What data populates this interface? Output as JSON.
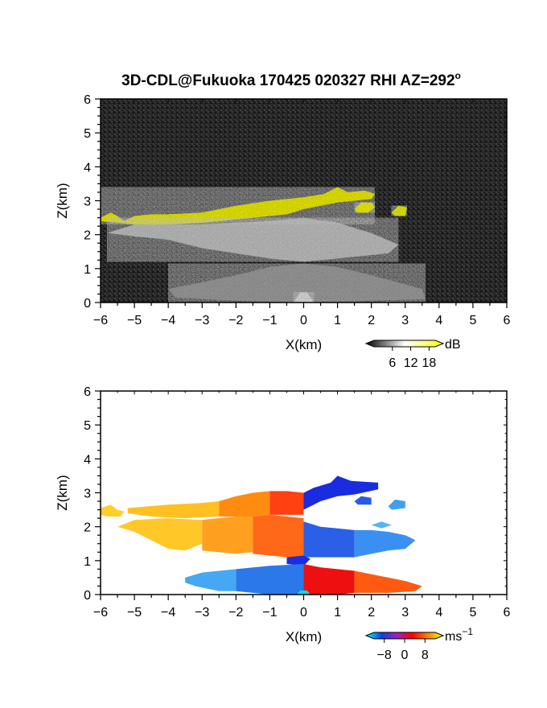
{
  "figure": {
    "title": "3D-CDL@Fukuoka 170425 020327 RHI AZ=292",
    "title_degree_sign": "o"
  },
  "chart_data": [
    {
      "type": "heatmap",
      "name": "signal-to-noise",
      "xlabel": "X(km)",
      "ylabel": "Z(km)",
      "xlim": [
        -6,
        6
      ],
      "ylim": [
        0,
        6
      ],
      "xticks": [
        "−6",
        "−5",
        "−4",
        "−3",
        "−2",
        "−1",
        "0",
        "1",
        "2",
        "3",
        "4",
        "5",
        "6"
      ],
      "yticks": [
        "0",
        "1",
        "2",
        "3",
        "4",
        "5",
        "6"
      ],
      "grid": false,
      "colorbar": {
        "unit": "dB",
        "ticks": [
          "6",
          "12",
          "18"
        ],
        "tick_values": [
          6,
          12,
          18
        ],
        "range": [
          0,
          20
        ],
        "colors": [
          "#000000",
          "#ffffff",
          "#ffff00"
        ]
      },
      "background_color": "#232323",
      "layers": [
        {
          "label": "strong-return",
          "color": "#ffff00",
          "polygon": [
            [
              -6.0,
              2.5
            ],
            [
              -5.7,
              2.65
            ],
            [
              -5.5,
              2.55
            ],
            [
              -5.3,
              2.4
            ],
            [
              -5.0,
              2.55
            ],
            [
              -4.5,
              2.6
            ],
            [
              -4.0,
              2.6
            ],
            [
              -3.0,
              2.65
            ],
            [
              -2.0,
              2.85
            ],
            [
              -1.0,
              3.0
            ],
            [
              0.0,
              3.1
            ],
            [
              0.6,
              3.2
            ],
            [
              1.0,
              3.4
            ],
            [
              1.3,
              3.25
            ],
            [
              1.8,
              3.3
            ],
            [
              2.1,
              3.2
            ],
            [
              2.0,
              3.05
            ],
            [
              1.5,
              3.0
            ],
            [
              1.0,
              2.95
            ],
            [
              0.5,
              2.85
            ],
            [
              0.0,
              2.75
            ],
            [
              -0.5,
              2.6
            ],
            [
              -1.0,
              2.55
            ],
            [
              -2.0,
              2.45
            ],
            [
              -3.0,
              2.35
            ],
            [
              -4.0,
              2.3
            ],
            [
              -5.0,
              2.3
            ],
            [
              -5.5,
              2.35
            ],
            [
              -6.0,
              2.4
            ]
          ]
        },
        {
          "label": "strong-return",
          "color": "#ffff00",
          "polygon": [
            [
              1.5,
              2.75
            ],
            [
              1.7,
              2.95
            ],
            [
              2.0,
              2.95
            ],
            [
              2.1,
              2.8
            ],
            [
              1.9,
              2.65
            ],
            [
              1.6,
              2.65
            ]
          ]
        },
        {
          "label": "strong-return",
          "color": "#ffff00",
          "polygon": [
            [
              2.6,
              2.65
            ],
            [
              2.8,
              2.85
            ],
            [
              3.05,
              2.8
            ],
            [
              3.0,
              2.55
            ],
            [
              2.7,
              2.55
            ]
          ]
        },
        {
          "label": "weak-return",
          "color": "#cfcfcf",
          "polygon": [
            [
              -5.8,
              2.05
            ],
            [
              -5.0,
              2.3
            ],
            [
              -3.0,
              2.3
            ],
            [
              -1.0,
              2.4
            ],
            [
              0.0,
              2.5
            ],
            [
              1.0,
              2.35
            ],
            [
              2.0,
              2.05
            ],
            [
              2.8,
              1.7
            ],
            [
              2.5,
              1.45
            ],
            [
              1.0,
              1.3
            ],
            [
              0.0,
              1.2
            ],
            [
              -1.0,
              1.3
            ],
            [
              -2.0,
              1.45
            ],
            [
              -3.0,
              1.6
            ],
            [
              -4.0,
              1.85
            ],
            [
              -5.0,
              1.95
            ]
          ]
        },
        {
          "label": "weak-return",
          "color": "#a8a8a8",
          "polygon": [
            [
              -4.0,
              0.4
            ],
            [
              -2.0,
              0.8
            ],
            [
              -1.0,
              1.05
            ],
            [
              0.0,
              1.15
            ],
            [
              1.0,
              1.05
            ],
            [
              2.0,
              0.8
            ],
            [
              3.5,
              0.4
            ],
            [
              3.6,
              0.1
            ],
            [
              2.0,
              0.05
            ],
            [
              0.0,
              0.0
            ],
            [
              -2.0,
              0.05
            ],
            [
              -3.8,
              0.15
            ]
          ]
        },
        {
          "label": "weak-return",
          "color": "#e6e6e6",
          "polygon": [
            [
              -0.3,
              0.0
            ],
            [
              -0.1,
              0.3
            ],
            [
              0.1,
              0.3
            ],
            [
              0.3,
              0.0
            ]
          ]
        }
      ]
    },
    {
      "type": "heatmap",
      "name": "radial-velocity",
      "xlabel": "X(km)",
      "ylabel": "Z(km)",
      "xlim": [
        -6,
        6
      ],
      "ylim": [
        0,
        6
      ],
      "xticks": [
        "−6",
        "−5",
        "−4",
        "−3",
        "−2",
        "−1",
        "0",
        "1",
        "2",
        "3",
        "4",
        "5",
        "6"
      ],
      "yticks": [
        "0",
        "1",
        "2",
        "3",
        "4",
        "5",
        "6"
      ],
      "grid": false,
      "colorbar": {
        "unit": "ms",
        "unit_exponent": "−1",
        "ticks": [
          "−8",
          "0",
          "8"
        ],
        "tick_values": [
          -8,
          0,
          8
        ],
        "range": [
          -12,
          12
        ],
        "colors": [
          "#00ffff",
          "#1040e0",
          "#a020c0",
          "#ff0000",
          "#ff8000",
          "#ffff00"
        ]
      },
      "background_color": "#ffffff",
      "layers": [
        {
          "label": "velocity-region",
          "color": "#ffd02a",
          "polygon": [
            [
              -6.0,
              2.55
            ],
            [
              -5.7,
              2.65
            ],
            [
              -5.5,
              2.5
            ],
            [
              -5.3,
              2.45
            ],
            [
              -5.4,
              2.3
            ],
            [
              -5.8,
              2.3
            ],
            [
              -6.0,
              2.35
            ]
          ]
        },
        {
          "label": "velocity-region",
          "color": "#ffc020",
          "polygon": [
            [
              -5.2,
              2.55
            ],
            [
              -4.0,
              2.65
            ],
            [
              -3.0,
              2.7
            ],
            [
              -2.5,
              2.75
            ],
            [
              -2.5,
              2.3
            ],
            [
              -3.5,
              2.25
            ],
            [
              -4.5,
              2.3
            ],
            [
              -5.2,
              2.4
            ]
          ]
        },
        {
          "label": "velocity-region",
          "color": "#ff8c10",
          "polygon": [
            [
              -2.5,
              2.75
            ],
            [
              -2.0,
              2.9
            ],
            [
              -1.5,
              3.0
            ],
            [
              -1.0,
              3.05
            ],
            [
              -1.0,
              2.35
            ],
            [
              -1.5,
              2.3
            ],
            [
              -2.5,
              2.3
            ]
          ]
        },
        {
          "label": "velocity-region",
          "color": "#ff4010",
          "polygon": [
            [
              -1.0,
              3.05
            ],
            [
              -0.5,
              3.05
            ],
            [
              0.0,
              3.0
            ],
            [
              0.0,
              2.35
            ],
            [
              -0.5,
              2.35
            ],
            [
              -1.0,
              2.35
            ]
          ]
        },
        {
          "label": "velocity-region",
          "color": "#1a2ce0",
          "polygon": [
            [
              0.0,
              3.0
            ],
            [
              0.3,
              3.15
            ],
            [
              0.8,
              3.3
            ],
            [
              1.0,
              3.5
            ],
            [
              1.4,
              3.35
            ],
            [
              2.2,
              3.3
            ],
            [
              2.2,
              3.1
            ],
            [
              1.5,
              2.95
            ],
            [
              1.0,
              2.9
            ],
            [
              0.5,
              2.75
            ],
            [
              0.0,
              2.5
            ]
          ]
        },
        {
          "label": "velocity-region",
          "color": "#2a5ae8",
          "polygon": [
            [
              1.5,
              2.75
            ],
            [
              1.7,
              2.9
            ],
            [
              2.0,
              2.85
            ],
            [
              2.0,
              2.65
            ],
            [
              1.6,
              2.65
            ]
          ]
        },
        {
          "label": "velocity-region",
          "color": "#40a0f0",
          "polygon": [
            [
              2.5,
              2.6
            ],
            [
              2.7,
              2.8
            ],
            [
              3.0,
              2.75
            ],
            [
              3.0,
              2.55
            ],
            [
              2.6,
              2.5
            ]
          ]
        },
        {
          "label": "velocity-region",
          "color": "#ffc828",
          "polygon": [
            [
              -5.5,
              2.0
            ],
            [
              -5.0,
              2.2
            ],
            [
              -4.0,
              2.25
            ],
            [
              -3.0,
              2.2
            ],
            [
              -3.0,
              1.5
            ],
            [
              -3.5,
              1.3
            ],
            [
              -4.0,
              1.35
            ],
            [
              -4.5,
              1.6
            ],
            [
              -5.0,
              1.85
            ]
          ]
        },
        {
          "label": "velocity-region",
          "color": "#ffa020",
          "polygon": [
            [
              -3.0,
              2.2
            ],
            [
              -2.0,
              2.3
            ],
            [
              -1.5,
              2.3
            ],
            [
              -1.5,
              1.25
            ],
            [
              -2.0,
              1.2
            ],
            [
              -3.0,
              1.3
            ]
          ]
        },
        {
          "label": "velocity-region",
          "color": "#ff6818",
          "polygon": [
            [
              -1.5,
              2.3
            ],
            [
              -1.0,
              2.35
            ],
            [
              -0.5,
              2.3
            ],
            [
              0.0,
              2.25
            ],
            [
              0.0,
              1.1
            ],
            [
              -0.5,
              1.1
            ],
            [
              -1.5,
              1.2
            ]
          ]
        },
        {
          "label": "velocity-region",
          "color": "#2a60e8",
          "polygon": [
            [
              0.0,
              2.15
            ],
            [
              0.5,
              2.0
            ],
            [
              1.0,
              1.95
            ],
            [
              1.5,
              1.9
            ],
            [
              1.5,
              1.1
            ],
            [
              1.0,
              1.1
            ],
            [
              0.0,
              1.1
            ]
          ]
        },
        {
          "label": "velocity-region",
          "color": "#3a90f0",
          "polygon": [
            [
              1.5,
              1.9
            ],
            [
              2.0,
              1.9
            ],
            [
              2.5,
              1.85
            ],
            [
              3.0,
              1.75
            ],
            [
              3.3,
              1.6
            ],
            [
              3.0,
              1.35
            ],
            [
              2.5,
              1.3
            ],
            [
              2.0,
              1.2
            ],
            [
              1.5,
              1.1
            ]
          ]
        },
        {
          "label": "velocity-region",
          "color": "#52b8f4",
          "polygon": [
            [
              2.0,
              2.05
            ],
            [
              2.3,
              2.15
            ],
            [
              2.6,
              2.05
            ],
            [
              2.3,
              1.95
            ]
          ]
        },
        {
          "label": "velocity-region",
          "color": "#1a2ce0",
          "polygon": [
            [
              -0.5,
              1.1
            ],
            [
              0.0,
              1.15
            ],
            [
              0.2,
              1.05
            ],
            [
              0.0,
              0.85
            ],
            [
              -0.5,
              0.9
            ]
          ]
        },
        {
          "label": "velocity-region",
          "color": "#46a8f2",
          "polygon": [
            [
              -3.5,
              0.5
            ],
            [
              -3.0,
              0.65
            ],
            [
              -2.0,
              0.75
            ],
            [
              -2.0,
              0.1
            ],
            [
              -2.5,
              0.1
            ],
            [
              -3.2,
              0.25
            ],
            [
              -3.5,
              0.35
            ]
          ]
        },
        {
          "label": "velocity-region",
          "color": "#2a78ea",
          "polygon": [
            [
              -2.0,
              0.75
            ],
            [
              -1.0,
              0.85
            ],
            [
              0.0,
              0.9
            ],
            [
              0.0,
              0.0
            ],
            [
              -1.0,
              0.0
            ],
            [
              -2.0,
              0.1
            ]
          ]
        },
        {
          "label": "velocity-region",
          "color": "#ee1010",
          "polygon": [
            [
              0.0,
              0.9
            ],
            [
              0.5,
              0.8
            ],
            [
              1.0,
              0.75
            ],
            [
              1.5,
              0.7
            ],
            [
              1.5,
              0.05
            ],
            [
              1.0,
              0.0
            ],
            [
              0.0,
              0.0
            ]
          ]
        },
        {
          "label": "velocity-region",
          "color": "#ff5a10",
          "polygon": [
            [
              1.5,
              0.7
            ],
            [
              2.0,
              0.6
            ],
            [
              2.5,
              0.5
            ],
            [
              3.0,
              0.4
            ],
            [
              3.5,
              0.25
            ],
            [
              3.3,
              0.1
            ],
            [
              2.5,
              0.05
            ],
            [
              1.5,
              0.05
            ]
          ]
        },
        {
          "label": "velocity-region",
          "color": "#00e0e0",
          "polygon": [
            [
              -0.2,
              0.0
            ],
            [
              -0.1,
              0.12
            ],
            [
              0.1,
              0.12
            ],
            [
              0.2,
              0.0
            ]
          ]
        }
      ]
    }
  ]
}
